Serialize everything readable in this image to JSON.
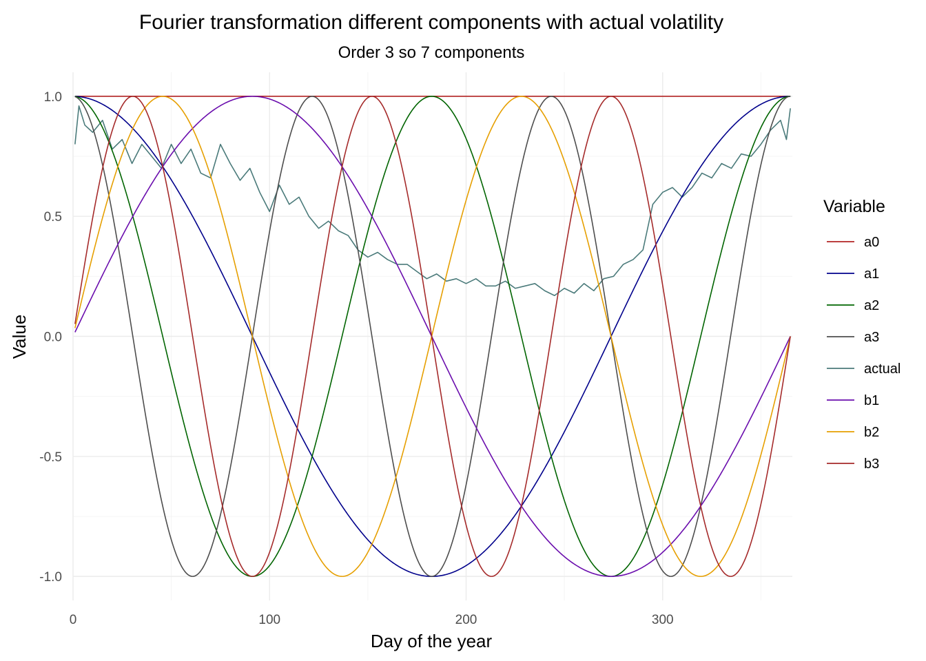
{
  "chart_data": {
    "type": "line",
    "title": "Fourier transformation different components with actual volatility",
    "subtitle": "Order 3 so 7 components",
    "xlabel": "Day of the year",
    "ylabel": "Value",
    "xlim": [
      0,
      366
    ],
    "ylim": [
      -1.1,
      1.1
    ],
    "x_ticks": [
      0,
      100,
      200,
      300
    ],
    "x_tick_labels": [
      "0",
      "100",
      "200",
      "300"
    ],
    "y_ticks": [
      -1.0,
      -0.5,
      0.0,
      0.5,
      1.0
    ],
    "y_tick_labels": [
      "-1.0",
      "-0.5",
      "0.0",
      "0.5",
      "1.0"
    ],
    "grid": true,
    "legend_title": "Variable",
    "legend_position": "right",
    "period_days": 365,
    "series": [
      {
        "name": "a0",
        "color": "#b22222",
        "function": "constant",
        "harmonic": 0
      },
      {
        "name": "a1",
        "color": "#00008b",
        "function": "cos",
        "harmonic": 1
      },
      {
        "name": "a2",
        "color": "#006400",
        "function": "cos",
        "harmonic": 2
      },
      {
        "name": "a3",
        "color": "#4d4d4d",
        "function": "cos",
        "harmonic": 3
      },
      {
        "name": "actual",
        "color": "#4a7a7a",
        "function": "data",
        "x": [
          1,
          3,
          6,
          10,
          15,
          20,
          25,
          30,
          35,
          40,
          45,
          50,
          55,
          60,
          65,
          70,
          75,
          80,
          85,
          90,
          95,
          100,
          105,
          110,
          115,
          120,
          125,
          130,
          135,
          140,
          145,
          150,
          155,
          160,
          165,
          170,
          175,
          180,
          185,
          190,
          195,
          200,
          205,
          210,
          215,
          220,
          225,
          230,
          235,
          240,
          245,
          250,
          255,
          260,
          265,
          270,
          275,
          280,
          285,
          290,
          295,
          300,
          305,
          310,
          315,
          320,
          325,
          330,
          335,
          340,
          345,
          350,
          355,
          360,
          363,
          365
        ],
        "values": [
          0.8,
          0.96,
          0.88,
          0.85,
          0.9,
          0.78,
          0.82,
          0.72,
          0.8,
          0.75,
          0.7,
          0.8,
          0.72,
          0.78,
          0.68,
          0.66,
          0.8,
          0.72,
          0.65,
          0.7,
          0.6,
          0.52,
          0.63,
          0.55,
          0.58,
          0.5,
          0.45,
          0.48,
          0.44,
          0.42,
          0.36,
          0.33,
          0.35,
          0.32,
          0.3,
          0.3,
          0.27,
          0.24,
          0.26,
          0.23,
          0.24,
          0.22,
          0.24,
          0.21,
          0.21,
          0.23,
          0.2,
          0.21,
          0.22,
          0.19,
          0.17,
          0.2,
          0.18,
          0.22,
          0.19,
          0.24,
          0.25,
          0.3,
          0.32,
          0.36,
          0.55,
          0.6,
          0.62,
          0.58,
          0.62,
          0.68,
          0.66,
          0.72,
          0.7,
          0.76,
          0.75,
          0.8,
          0.86,
          0.9,
          0.82,
          0.95
        ]
      },
      {
        "name": "b1",
        "color": "#6a0dad",
        "function": "sin",
        "harmonic": 1
      },
      {
        "name": "b2",
        "color": "#e69f00",
        "function": "sin",
        "harmonic": 2
      },
      {
        "name": "b3",
        "color": "#a52a2a",
        "function": "sin",
        "harmonic": 3
      }
    ]
  }
}
